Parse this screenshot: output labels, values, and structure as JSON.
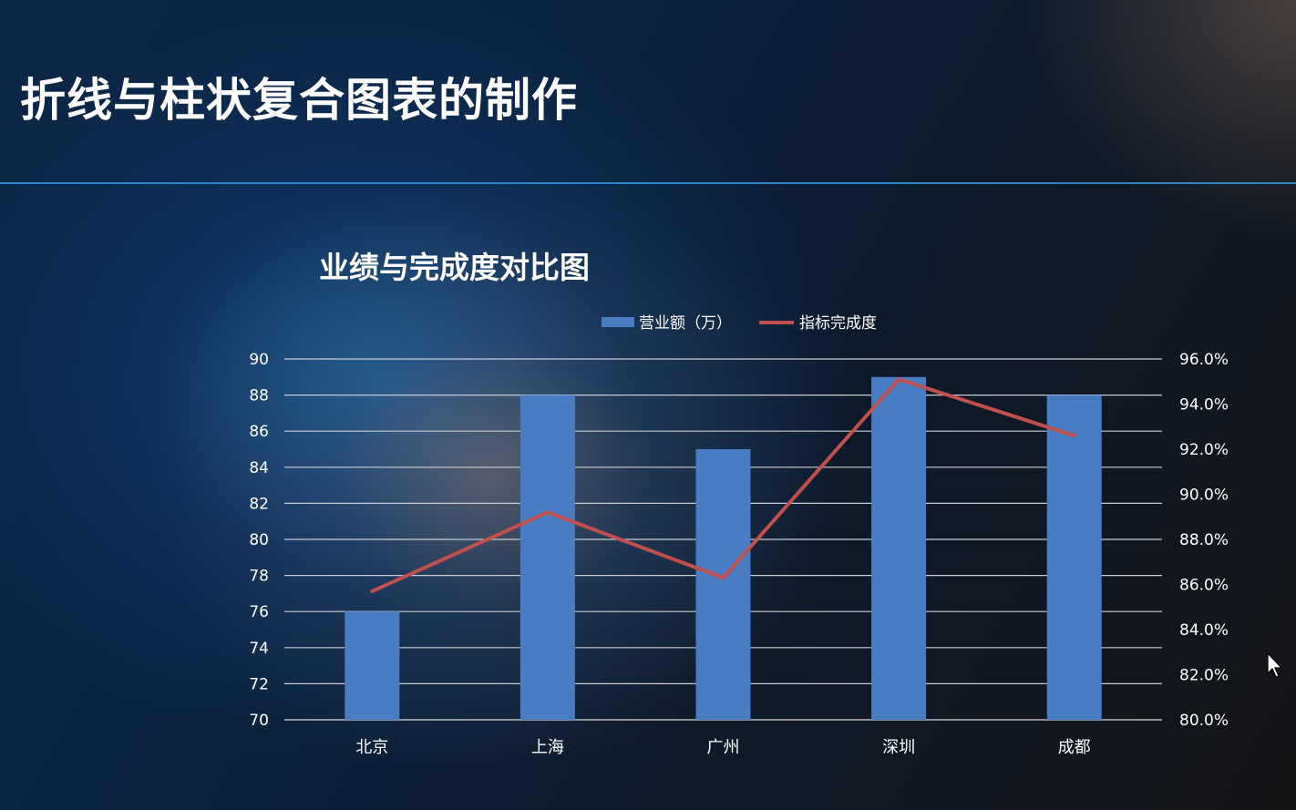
{
  "slide": {
    "title": "折线与柱状复合图表的制作"
  },
  "chart_data": {
    "type": "bar",
    "title": "业绩与完成度对比图",
    "categories": [
      "北京",
      "上海",
      "广州",
      "深圳",
      "成都"
    ],
    "series": [
      {
        "name": "营业额（万）",
        "type": "bar",
        "axis": "left",
        "color": "#4a7cc4",
        "values": [
          76,
          88,
          85,
          89,
          88
        ]
      },
      {
        "name": "指标完成度",
        "type": "line",
        "axis": "right",
        "color": "#c0504d",
        "values": [
          85.7,
          89.2,
          86.3,
          95.1,
          92.6
        ]
      }
    ],
    "y_left": {
      "min": 70,
      "max": 90,
      "ticks": [
        "90",
        "88",
        "86",
        "84",
        "82",
        "80",
        "78",
        "76",
        "74",
        "72",
        "70"
      ]
    },
    "y_right": {
      "min": 80,
      "max": 96,
      "ticks": [
        "96.0%",
        "94.0%",
        "92.0%",
        "90.0%",
        "88.0%",
        "86.0%",
        "84.0%",
        "82.0%",
        "80.0%"
      ]
    },
    "legend_position": "top",
    "grid": true
  }
}
